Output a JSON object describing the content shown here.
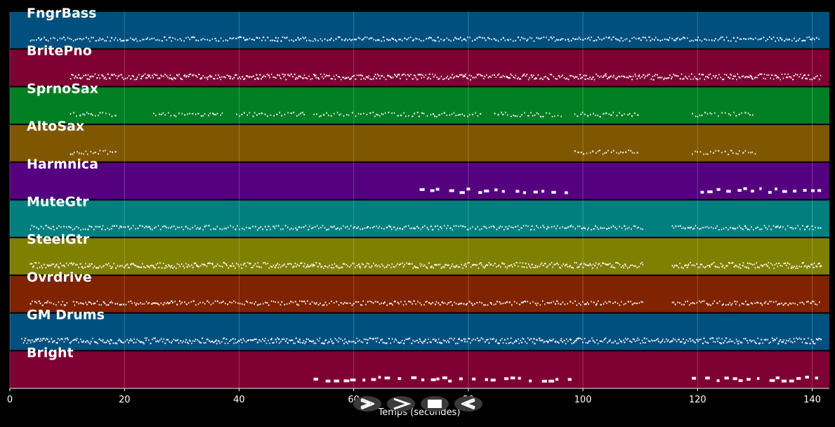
{
  "chart_data": {
    "type": "piano-roll",
    "xlabel": "Temps (secondes)",
    "xlim": [
      0,
      143
    ],
    "xticks": [
      0,
      20,
      40,
      60,
      80,
      100,
      120,
      140
    ],
    "grid": true,
    "tracks": [
      {
        "name": "FngrBass",
        "color": "#00507f",
        "segments": [
          [
            3.5,
            115.5
          ],
          [
            115.8,
            141.5
          ]
        ],
        "density": "medium"
      },
      {
        "name": "BritePno",
        "color": "#7f0032",
        "segments": [
          [
            10.5,
            141.5
          ]
        ],
        "density": "high"
      },
      {
        "name": "SprnoSax",
        "color": "#007f23",
        "segments": [
          [
            10.5,
            18.5
          ],
          [
            25,
            37
          ],
          [
            39.5,
            51.5
          ],
          [
            53,
            82
          ],
          [
            84.5,
            96.5
          ],
          [
            98.5,
            109.5
          ],
          [
            119,
            130
          ]
        ],
        "density": "low"
      },
      {
        "name": "AltoSax",
        "color": "#7f5700",
        "segments": [
          [
            10.5,
            18.5
          ],
          [
            98.5,
            109.5
          ],
          [
            119,
            130
          ]
        ],
        "density": "low"
      },
      {
        "name": "Harmnica",
        "color": "#55007f",
        "segments": [
          [
            71.5,
            98
          ],
          [
            120.5,
            141.5
          ]
        ],
        "density": "sparse"
      },
      {
        "name": "MuteGtr",
        "color": "#007f7f",
        "segments": [
          [
            3.5,
            110.5
          ],
          [
            115.5,
            141.5
          ]
        ],
        "density": "medium"
      },
      {
        "name": "SteelGtr",
        "color": "#7f7f00",
        "segments": [
          [
            3.5,
            110.5
          ],
          [
            115.5,
            141.5
          ]
        ],
        "density": "high"
      },
      {
        "name": "Ovrdrive",
        "color": "#7f2300",
        "segments": [
          [
            3.5,
            10
          ],
          [
            11,
            110.5
          ],
          [
            115.5,
            141.5
          ]
        ],
        "density": "medium"
      },
      {
        "name": "GM Drums",
        "color": "#00507f",
        "segments": [
          [
            2,
            141.5
          ]
        ],
        "density": "high"
      },
      {
        "name": "Bright",
        "color": "#7f0032",
        "segments": [
          [
            53,
            98
          ],
          [
            119,
            141.5
          ]
        ],
        "density": "sparse"
      }
    ]
  },
  "controls": {
    "play_icon": "play-icon",
    "forward_icon": "forward-icon",
    "stop_icon": "stop-icon",
    "rewind_icon": "rewind-icon"
  }
}
